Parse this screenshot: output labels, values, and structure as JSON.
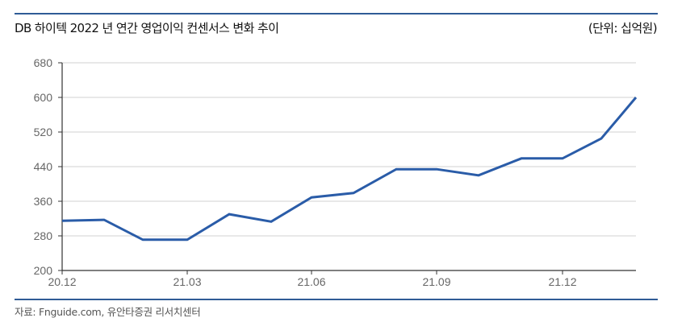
{
  "header": {
    "title": "DB 하이텍 2022 년 연간 영업이익 컨센서스 변화 추이",
    "unit": "(단위: 십억원)"
  },
  "footer": {
    "source": "자료: Fnguide.com, 유안타증권 리서치센터"
  },
  "colors": {
    "line": "#2a5ca8",
    "rule": "#2f5c96",
    "grid": "#d9d9d9",
    "axis": "#333333"
  },
  "chart_data": {
    "type": "line",
    "title": "DB 하이텍 2022 년 연간 영업이익 컨센서스 변화 추이",
    "xlabel": "",
    "ylabel": "(단위: 십억원)",
    "ylim": [
      200,
      680
    ],
    "yticks": [
      200,
      280,
      360,
      440,
      520,
      600,
      680
    ],
    "xtick_labels": [
      "20.12",
      "21.03",
      "21.06",
      "21.09",
      "21.12"
    ],
    "grid": true,
    "legend": "none",
    "x": [
      "20.12a",
      "20.12b",
      "21.01",
      "21.02",
      "21.03",
      "21.04",
      "21.05",
      "21.06",
      "21.07",
      "21.08",
      "21.09",
      "21.10",
      "21.11",
      "21.12",
      "22.01"
    ],
    "series": [
      {
        "name": "2022년 연간 영업이익 컨센서스",
        "values": [
          315,
          317,
          271,
          271,
          330,
          313,
          369,
          379,
          434,
          434,
          420,
          459,
          459,
          505,
          600
        ]
      }
    ]
  }
}
